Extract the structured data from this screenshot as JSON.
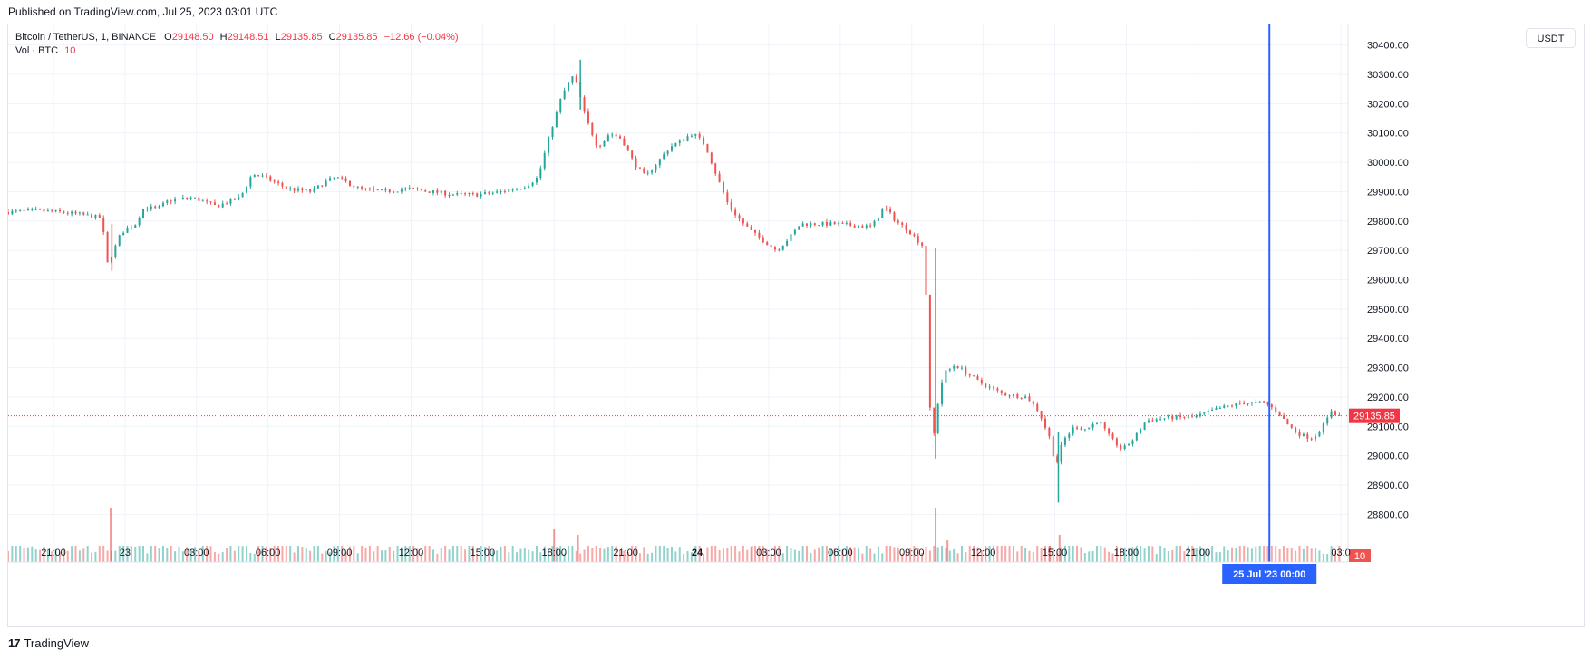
{
  "header": {
    "published": "Published on TradingView.com, Jul 25, 2023 03:01 UTC"
  },
  "legend": {
    "symbol": "Bitcoin / TetherUS, 1, BINANCE",
    "o_label": "O",
    "o_value": "29148.50",
    "h_label": "H",
    "h_value": "29148.51",
    "l_label": "L",
    "l_value": "29135.85",
    "c_label": "C",
    "c_value": "29135.85",
    "change": "−12.66 (−0.04%)",
    "vol_label": "Vol · BTC",
    "vol_value": "10"
  },
  "scale": {
    "currency_button": "USDT"
  },
  "footer": {
    "logo": "17",
    "brand": "TradingView"
  },
  "colors": {
    "up": "#26a69a",
    "down": "#ef5350",
    "accent": "#2962ff",
    "price_line": "#f23645",
    "vol_up": "#26a69a",
    "vol_down": "#ef5350"
  },
  "chart_data": {
    "type": "line",
    "title": "Bitcoin / TetherUS, 1, BINANCE",
    "xlabel": "",
    "ylabel": "",
    "y_ticks": [
      "30400.00",
      "30300.00",
      "30200.00",
      "30100.00",
      "30000.00",
      "29900.00",
      "29800.00",
      "29700.00",
      "29600.00",
      "29500.00",
      "29400.00",
      "29300.00",
      "29200.00",
      "29100.00",
      "29000.00",
      "28900.00",
      "28800.00"
    ],
    "ylim": [
      28730,
      30470
    ],
    "x_ticks": [
      {
        "label": "21:00",
        "h": -3,
        "bold": false
      },
      {
        "label": "23",
        "h": 0,
        "bold": false
      },
      {
        "label": "03:00",
        "h": 3,
        "bold": false
      },
      {
        "label": "06:00",
        "h": 6,
        "bold": false
      },
      {
        "label": "09:00",
        "h": 9,
        "bold": false
      },
      {
        "label": "12:00",
        "h": 12,
        "bold": false
      },
      {
        "label": "15:00",
        "h": 15,
        "bold": false
      },
      {
        "label": "18:00",
        "h": 18,
        "bold": false
      },
      {
        "label": "21:00",
        "h": 21,
        "bold": false
      },
      {
        "label": "24",
        "h": 24,
        "bold": true
      },
      {
        "label": "03:00",
        "h": 27,
        "bold": false
      },
      {
        "label": "06:00",
        "h": 30,
        "bold": false
      },
      {
        "label": "09:00",
        "h": 33,
        "bold": false
      },
      {
        "label": "12:00",
        "h": 36,
        "bold": false
      },
      {
        "label": "15:00",
        "h": 39,
        "bold": false
      },
      {
        "label": "18:00",
        "h": 42,
        "bold": false
      },
      {
        "label": "21:00",
        "h": 45,
        "bold": false
      },
      {
        "label": "03:0",
        "h": 51,
        "bold": false
      }
    ],
    "xlim_hours": [
      -4.9,
      51.3
    ],
    "price_anchors": [
      [
        -4.9,
        29830
      ],
      [
        -3.5,
        29835
      ],
      [
        -2.5,
        29830
      ],
      [
        -1.5,
        29820
      ],
      [
        -0.8,
        29810
      ],
      [
        -0.6,
        29650
      ],
      [
        -0.3,
        29700
      ],
      [
        0,
        29760
      ],
      [
        0.6,
        29790
      ],
      [
        1.0,
        29850
      ],
      [
        1.5,
        29840
      ],
      [
        2.0,
        29870
      ],
      [
        3.0,
        29880
      ],
      [
        4.0,
        29850
      ],
      [
        5.0,
        29880
      ],
      [
        5.5,
        29960
      ],
      [
        6.0,
        29950
      ],
      [
        7.0,
        29910
      ],
      [
        8.0,
        29900
      ],
      [
        8.5,
        29930
      ],
      [
        9.0,
        29950
      ],
      [
        10.0,
        29910
      ],
      [
        11.0,
        29900
      ],
      [
        12.0,
        29910
      ],
      [
        13.0,
        29900
      ],
      [
        14.0,
        29890
      ],
      [
        15.0,
        29890
      ],
      [
        16.0,
        29900
      ],
      [
        17.0,
        29920
      ],
      [
        17.5,
        29950
      ],
      [
        18.0,
        30100
      ],
      [
        18.5,
        30230
      ],
      [
        19.0,
        30300
      ],
      [
        19.5,
        30150
      ],
      [
        20.0,
        30050
      ],
      [
        20.5,
        30100
      ],
      [
        21.0,
        30080
      ],
      [
        21.5,
        30000
      ],
      [
        22.0,
        29950
      ],
      [
        23.0,
        30050
      ],
      [
        24.0,
        30100
      ],
      [
        24.5,
        30060
      ],
      [
        25.0,
        29950
      ],
      [
        25.5,
        29850
      ],
      [
        26.0,
        29800
      ],
      [
        26.5,
        29760
      ],
      [
        27.5,
        29700
      ],
      [
        28.0,
        29740
      ],
      [
        28.5,
        29790
      ],
      [
        30.0,
        29790
      ],
      [
        31.5,
        29780
      ],
      [
        32.0,
        29850
      ],
      [
        32.5,
        29800
      ],
      [
        33.0,
        29770
      ],
      [
        33.7,
        29710
      ],
      [
        34.0,
        29000
      ],
      [
        34.2,
        29150
      ],
      [
        34.5,
        29280
      ],
      [
        35.0,
        29310
      ],
      [
        35.5,
        29280
      ],
      [
        36.0,
        29250
      ],
      [
        36.5,
        29230
      ],
      [
        37.0,
        29210
      ],
      [
        38.0,
        29200
      ],
      [
        38.5,
        29150
      ],
      [
        39.0,
        29050
      ],
      [
        39.2,
        28960
      ],
      [
        39.5,
        29050
      ],
      [
        40.0,
        29100
      ],
      [
        40.5,
        29090
      ],
      [
        41.0,
        29120
      ],
      [
        41.5,
        29060
      ],
      [
        42.0,
        29020
      ],
      [
        42.5,
        29060
      ],
      [
        43.0,
        29120
      ],
      [
        44.0,
        29130
      ],
      [
        45.0,
        29130
      ],
      [
        46.0,
        29160
      ],
      [
        47.0,
        29180
      ],
      [
        48.0,
        29180
      ],
      [
        48.5,
        29150
      ],
      [
        49.0,
        29100
      ],
      [
        49.5,
        29070
      ],
      [
        50.0,
        29060
      ],
      [
        50.5,
        29110
      ],
      [
        50.8,
        29160
      ],
      [
        51.0,
        29135
      ]
    ],
    "candle_minutes": 10,
    "volume_spikes": [
      [
        -0.6,
        10
      ],
      [
        18.0,
        6
      ],
      [
        19.0,
        5
      ],
      [
        26.3,
        3
      ],
      [
        34.0,
        10
      ],
      [
        34.5,
        4
      ],
      [
        38.8,
        3
      ],
      [
        39.2,
        5
      ]
    ],
    "volume_scale_max": 10,
    "last_price": {
      "value": 29135.85,
      "label": "29135.85"
    },
    "last_volume": {
      "label": "10"
    },
    "crosshair": {
      "h": 48,
      "label": "25 Jul '23   00:00"
    }
  }
}
